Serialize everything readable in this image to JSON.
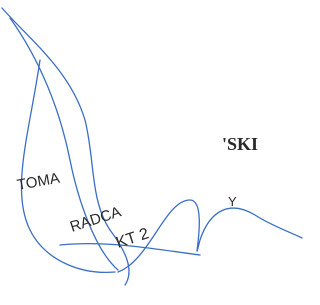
{
  "stamp": {
    "name_start": "TOMA",
    "name_end": "'SKI",
    "letter": "Y",
    "title": "RADCA",
    "number": "KT 2"
  }
}
